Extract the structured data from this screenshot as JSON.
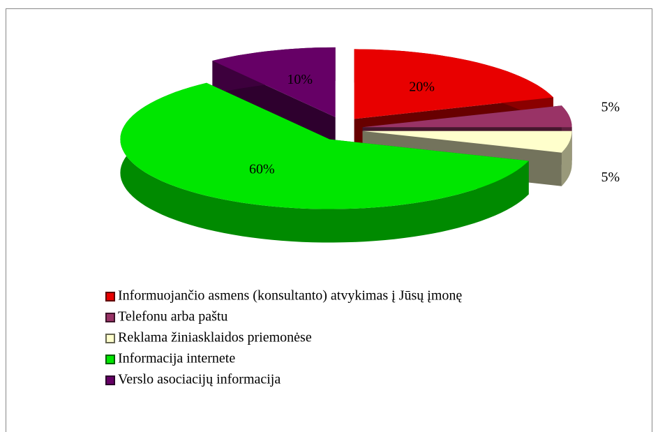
{
  "chart_data": {
    "type": "pie",
    "categories": [
      "Informuojančio asmens (konsultanto) atvykimas į Jūsų įmonę",
      "Telefonu arba paštu",
      "Reklama žiniasklaidos priemonėse",
      "Informacija internete",
      "Verslo asociacijų informacija"
    ],
    "values": [
      20,
      5,
      5,
      60,
      10
    ],
    "value_labels": [
      "20%",
      "5%",
      "5%",
      "60%",
      "10%"
    ],
    "colors": [
      "#e80000",
      "#993366",
      "#ffffcc",
      "#00e600",
      "#660066"
    ],
    "legend": "bottom-left"
  }
}
